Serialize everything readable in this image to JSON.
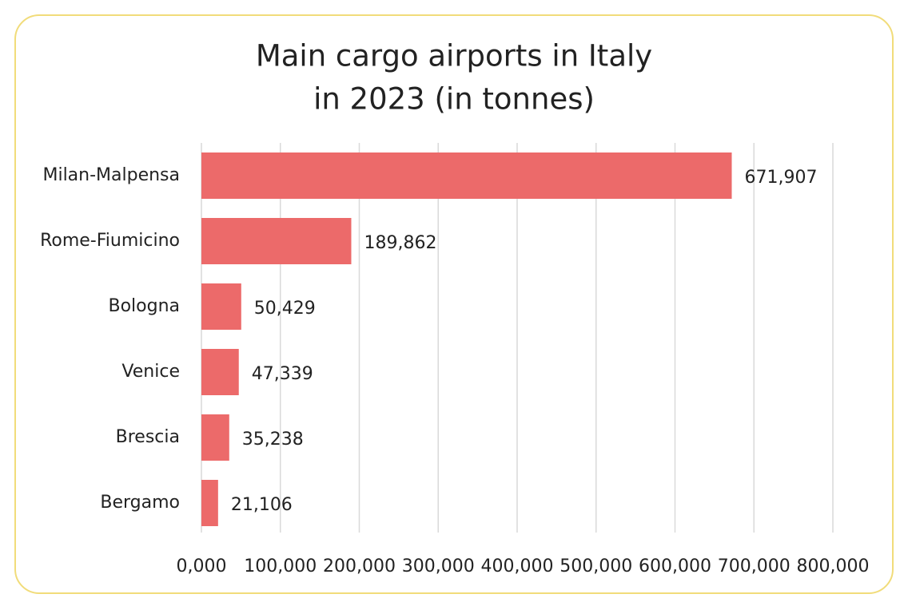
{
  "chart_data": {
    "type": "bar",
    "orientation": "horizontal",
    "title": [
      "Main cargo airports in Italy",
      "in 2023 (in tonnes)"
    ],
    "categories": [
      "Milan-Malpensa",
      "Rome-Fiumicino",
      "Bologna",
      "Venice",
      "Brescia",
      "Bergamo"
    ],
    "values": [
      671907,
      189862,
      50429,
      47339,
      35238,
      21106
    ],
    "value_labels": [
      "671,907",
      "189,862",
      "50,429",
      "47,339",
      "35,238",
      "21,106"
    ],
    "color": "#ec6a6a",
    "xlim": [
      0,
      800000
    ],
    "xticks": [
      {
        "value": 0,
        "label": "0,000"
      },
      {
        "value": 100000,
        "label": "100,000"
      },
      {
        "value": 200000,
        "label": "200,000"
      },
      {
        "value": 300000,
        "label": "300,000"
      },
      {
        "value": 400000,
        "label": "400,000"
      },
      {
        "value": 500000,
        "label": "500,000"
      },
      {
        "value": 600000,
        "label": "600,000"
      },
      {
        "value": 700000,
        "label": "700,000"
      },
      {
        "value": 800000,
        "label": "800,000"
      }
    ],
    "grid": true
  }
}
